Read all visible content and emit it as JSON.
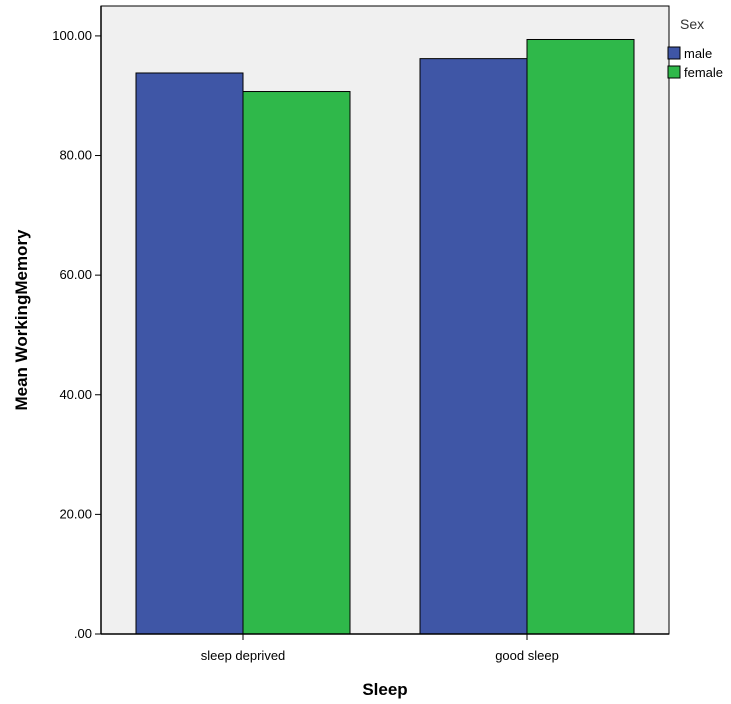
{
  "chart_data": {
    "type": "bar",
    "categories": [
      "sleep deprived",
      "good sleep"
    ],
    "series": [
      {
        "name": "male",
        "values": [
          93.8,
          96.2
        ],
        "color": "#3f56a6"
      },
      {
        "name": "female",
        "values": [
          90.7,
          99.4
        ],
        "color": "#2fb84a"
      }
    ],
    "xlabel": "Sleep",
    "ylabel": "Mean WorkingMemory",
    "ylim": [
      0,
      105
    ],
    "yticks": [
      0,
      20,
      40,
      60,
      80,
      100
    ],
    "ytick_labels": [
      ".00",
      "20.00",
      "40.00",
      "60.00",
      "80.00",
      "100.00"
    ],
    "legend_title": "Sex",
    "legend_position": "top-right",
    "grid": false,
    "plot_background": "#f0f0f0"
  }
}
